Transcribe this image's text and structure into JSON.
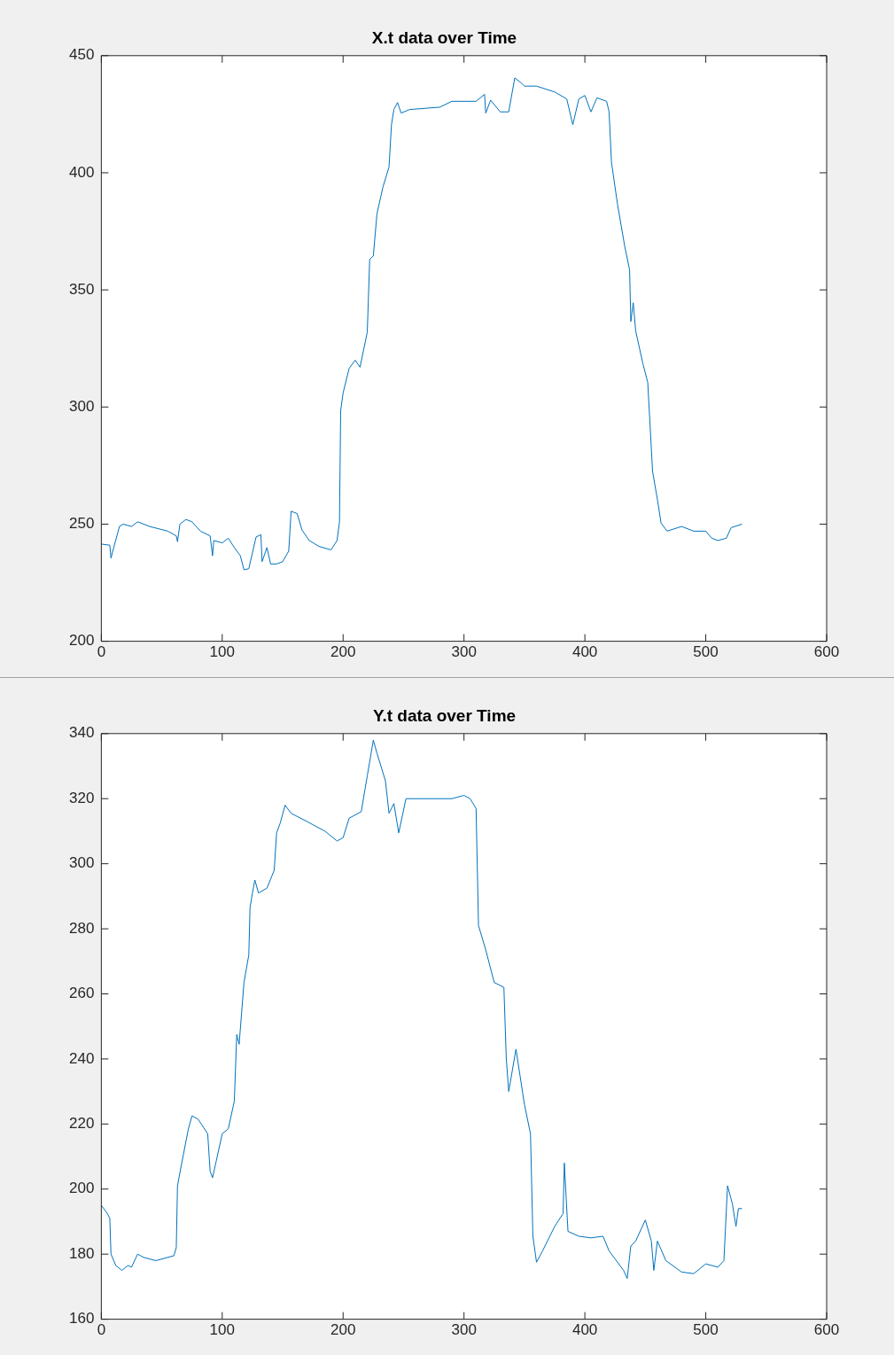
{
  "chart_data": [
    {
      "type": "line",
      "title": "X.t data over Time",
      "color": "#0072bd",
      "grid": false,
      "legend": false,
      "marker": "none",
      "xlim": [
        0,
        600
      ],
      "xticks": [
        0,
        100,
        200,
        300,
        400,
        500,
        600
      ],
      "ylim": [
        200,
        450
      ],
      "yticks": [
        200,
        250,
        300,
        350,
        400,
        450
      ],
      "x": [
        0,
        7,
        8,
        10,
        15,
        18,
        25,
        30,
        40,
        55,
        62,
        63,
        65,
        70,
        75,
        82,
        90,
        92,
        93,
        100,
        105,
        110,
        115,
        118,
        122,
        128,
        132,
        133,
        137,
        140,
        145,
        150,
        155,
        157,
        162,
        166,
        172,
        180,
        190,
        195,
        197,
        198,
        200,
        205,
        210,
        214,
        220,
        222,
        225,
        228,
        233,
        238,
        240,
        242,
        245,
        248,
        255,
        280,
        290,
        310,
        317,
        318,
        322,
        330,
        337,
        342,
        347,
        350,
        360,
        375,
        385,
        390,
        395,
        400,
        405,
        410,
        418,
        420,
        422,
        427,
        433,
        437,
        438,
        440,
        442,
        448,
        452,
        456,
        460,
        463,
        468,
        480,
        490,
        500,
        505,
        510,
        517,
        521,
        530
      ],
      "values": [
        241.5,
        241,
        235.5,
        239.5,
        249,
        250,
        249,
        251,
        249,
        247,
        245,
        242.5,
        250,
        252,
        251,
        247,
        245,
        236.5,
        243,
        242,
        244,
        240,
        236.5,
        230.5,
        231,
        244.5,
        245.5,
        234,
        240,
        233,
        233,
        234,
        238.5,
        255.5,
        254.5,
        247.5,
        243,
        240.5,
        239,
        243,
        251,
        298.5,
        306,
        316.5,
        320,
        317,
        332,
        363,
        364.5,
        382.5,
        394,
        402.5,
        420.5,
        427,
        430,
        425.5,
        427,
        428,
        430.5,
        430.5,
        433.5,
        425.5,
        431,
        426,
        426,
        440.5,
        438.5,
        437,
        437,
        434.5,
        431.5,
        420.5,
        431.5,
        433,
        426,
        432,
        430.5,
        426,
        404.5,
        386.5,
        368.5,
        358.5,
        336.5,
        344.5,
        332.5,
        318.5,
        310.5,
        272.5,
        260.5,
        250.5,
        247,
        249,
        247,
        247,
        244,
        243,
        244,
        248.5,
        250
      ]
    },
    {
      "type": "line",
      "title": "Y.t data over Time",
      "color": "#0072bd",
      "grid": false,
      "legend": false,
      "marker": "none",
      "xlim": [
        0,
        600
      ],
      "xticks": [
        0,
        100,
        200,
        300,
        400,
        500,
        600
      ],
      "ylim": [
        160,
        340
      ],
      "yticks": [
        160,
        180,
        200,
        220,
        240,
        260,
        280,
        300,
        320,
        340
      ],
      "x": [
        0,
        5,
        7,
        8,
        12,
        17,
        22,
        25,
        30,
        35,
        45,
        60,
        62,
        63,
        66,
        72,
        75,
        80,
        88,
        90,
        92,
        95,
        100,
        105,
        110,
        112,
        114,
        118,
        122,
        123,
        125,
        127,
        130,
        137,
        143,
        145,
        148,
        152,
        157,
        170,
        185,
        195,
        200,
        205,
        215,
        220,
        225,
        228,
        235,
        238,
        242,
        246,
        252,
        260,
        290,
        300,
        305,
        310,
        312,
        318,
        325,
        333,
        335,
        337,
        343,
        350,
        355,
        357,
        360,
        365,
        375,
        382,
        383,
        386,
        395,
        405,
        415,
        420,
        432,
        435,
        438,
        442,
        450,
        455,
        457,
        460,
        467,
        480,
        490,
        500,
        510,
        515,
        518,
        522,
        525,
        527,
        530
      ],
      "values": [
        195,
        192.5,
        191,
        180,
        176.5,
        175,
        176.5,
        176,
        180,
        179,
        178,
        179.5,
        182,
        201,
        207,
        218.5,
        222.5,
        221.5,
        217,
        205.5,
        203.5,
        208.5,
        217,
        218.5,
        227,
        247.5,
        244.5,
        263.5,
        272,
        286.5,
        291,
        295,
        291,
        292.5,
        298,
        309.5,
        312.5,
        318,
        315.5,
        313,
        310,
        307,
        308,
        314,
        316,
        327,
        338,
        334,
        325.5,
        315.5,
        318.5,
        309.5,
        320,
        320,
        320,
        321,
        320,
        317,
        281,
        273.5,
        263.5,
        262,
        240,
        230,
        243,
        226,
        217,
        185.5,
        177.5,
        181,
        188.5,
        192.5,
        208,
        187,
        185.5,
        185,
        185.5,
        181,
        175,
        172.5,
        182.5,
        184,
        190.5,
        184,
        175,
        184,
        178,
        174.5,
        174,
        177,
        176,
        178,
        201,
        195.5,
        188.5,
        194,
        194
      ]
    }
  ]
}
